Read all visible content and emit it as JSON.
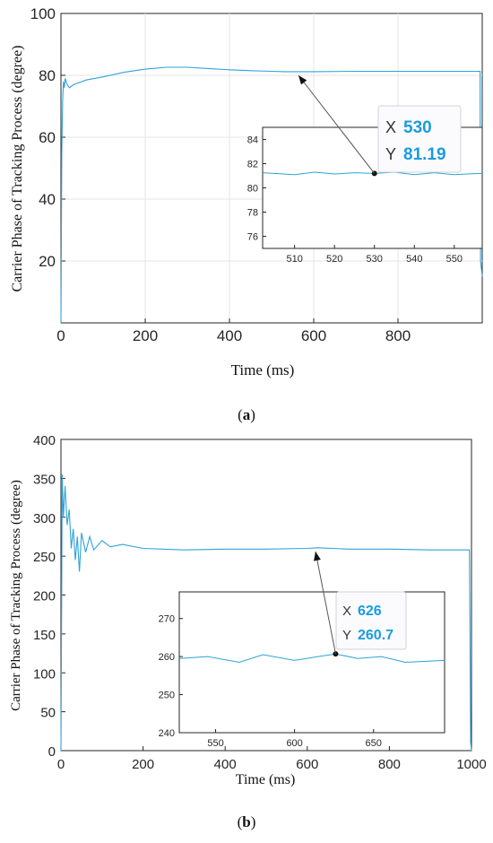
{
  "colors": {
    "series": "#2fa2d8",
    "axis": "#262626",
    "grid": "#e6e6e6",
    "datatip_value": "#1a9be0"
  },
  "chart_data": [
    {
      "type": "line",
      "panel_label": "a",
      "xlabel": "Time (ms)",
      "ylabel": "Carrier Phase of Tracking Process (degree)",
      "xlim": [
        0,
        1000
      ],
      "ylim": [
        0,
        100
      ],
      "xticks": [
        0,
        200,
        400,
        600,
        800
      ],
      "yticks": [
        20,
        40,
        60,
        80,
        100
      ],
      "grid": true,
      "series": [
        {
          "x": [
            0,
            2,
            4,
            6,
            8,
            10,
            15,
            20,
            30,
            40,
            60,
            80,
            100,
            150,
            200,
            250,
            300,
            350,
            400,
            450,
            500,
            530,
            600,
            700,
            800,
            900,
            995,
            996,
            1000
          ],
          "y": [
            0,
            55,
            72,
            78,
            76,
            79,
            77,
            76,
            77,
            77.5,
            78.5,
            79,
            79.5,
            81,
            82,
            82.6,
            82.6,
            82.2,
            81.8,
            81.5,
            81.3,
            81.19,
            81.2,
            81.3,
            81.3,
            81.3,
            81.3,
            20,
            15
          ]
        }
      ],
      "datatip": {
        "x_key": "X",
        "x": "530",
        "y_key": "Y",
        "y": "81.19"
      },
      "inset": {
        "xlim": [
          502,
          557
        ],
        "ylim": [
          75,
          85
        ],
        "xticks": [
          510,
          520,
          530,
          540,
          550
        ],
        "yticks": [
          76,
          78,
          80,
          82,
          84
        ],
        "series": [
          {
            "x": [
              502,
              510,
              515,
              520,
              525,
              530,
              535,
              540,
              545,
              550,
              557
            ],
            "y": [
              81.25,
              81.1,
              81.3,
              81.15,
              81.25,
              81.19,
              81.3,
              81.1,
              81.25,
              81.1,
              81.2
            ]
          }
        ],
        "highlight": {
          "x": 530,
          "y": 81.19
        }
      }
    },
    {
      "type": "line",
      "panel_label": "b",
      "xlabel": "Time (ms)",
      "ylabel": "Carrier Phase of Tracking Process (degree)",
      "xlim": [
        0,
        1000
      ],
      "ylim": [
        0,
        400
      ],
      "xticks": [
        0,
        200,
        400,
        600,
        800,
        1000
      ],
      "yticks": [
        0,
        50,
        100,
        150,
        200,
        250,
        300,
        350,
        400
      ],
      "grid": false,
      "series": [
        {
          "x": [
            0,
            3,
            6,
            10,
            15,
            20,
            25,
            30,
            35,
            40,
            45,
            50,
            60,
            70,
            80,
            100,
            120,
            150,
            200,
            300,
            400,
            500,
            600,
            626,
            700,
            800,
            900,
            995,
            998,
            1000
          ],
          "y": [
            0,
            355,
            300,
            340,
            290,
            310,
            260,
            285,
            245,
            275,
            230,
            280,
            255,
            275,
            258,
            270,
            262,
            265,
            260,
            258,
            259,
            259,
            260,
            260.7,
            259,
            259,
            258,
            258,
            10,
            0
          ]
        }
      ],
      "datatip": {
        "x_key": "X",
        "x": "626",
        "y_key": "Y",
        "y": "260.7"
      },
      "inset": {
        "xlim": [
          527,
          695
        ],
        "ylim": [
          240,
          277
        ],
        "xticks": [
          550,
          600,
          650
        ],
        "yticks": [
          240,
          250,
          260,
          270
        ],
        "series": [
          {
            "x": [
              527,
              545,
              565,
              580,
              600,
              615,
              626,
              640,
              655,
              670,
              695
            ],
            "y": [
              259.5,
              260,
              258.5,
              260.5,
              259,
              260,
              260.7,
              259.5,
              260,
              258.5,
              259
            ]
          }
        ],
        "highlight": {
          "x": 626,
          "y": 260.7
        }
      }
    }
  ]
}
